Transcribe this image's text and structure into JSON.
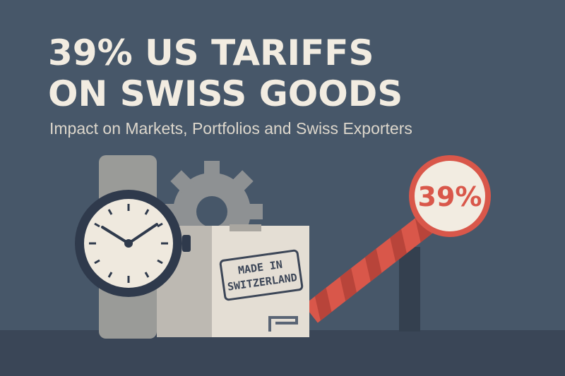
{
  "header": {
    "title_lines": [
      "39% US TARIFFS",
      "ON SWISS GOODS"
    ],
    "subtitle": "Impact on Markets, Portfolios and Swiss Exporters"
  },
  "illustration": {
    "badge": "39%",
    "stamp_lines": [
      "MADE IN",
      "SWITZERLAND"
    ]
  }
}
